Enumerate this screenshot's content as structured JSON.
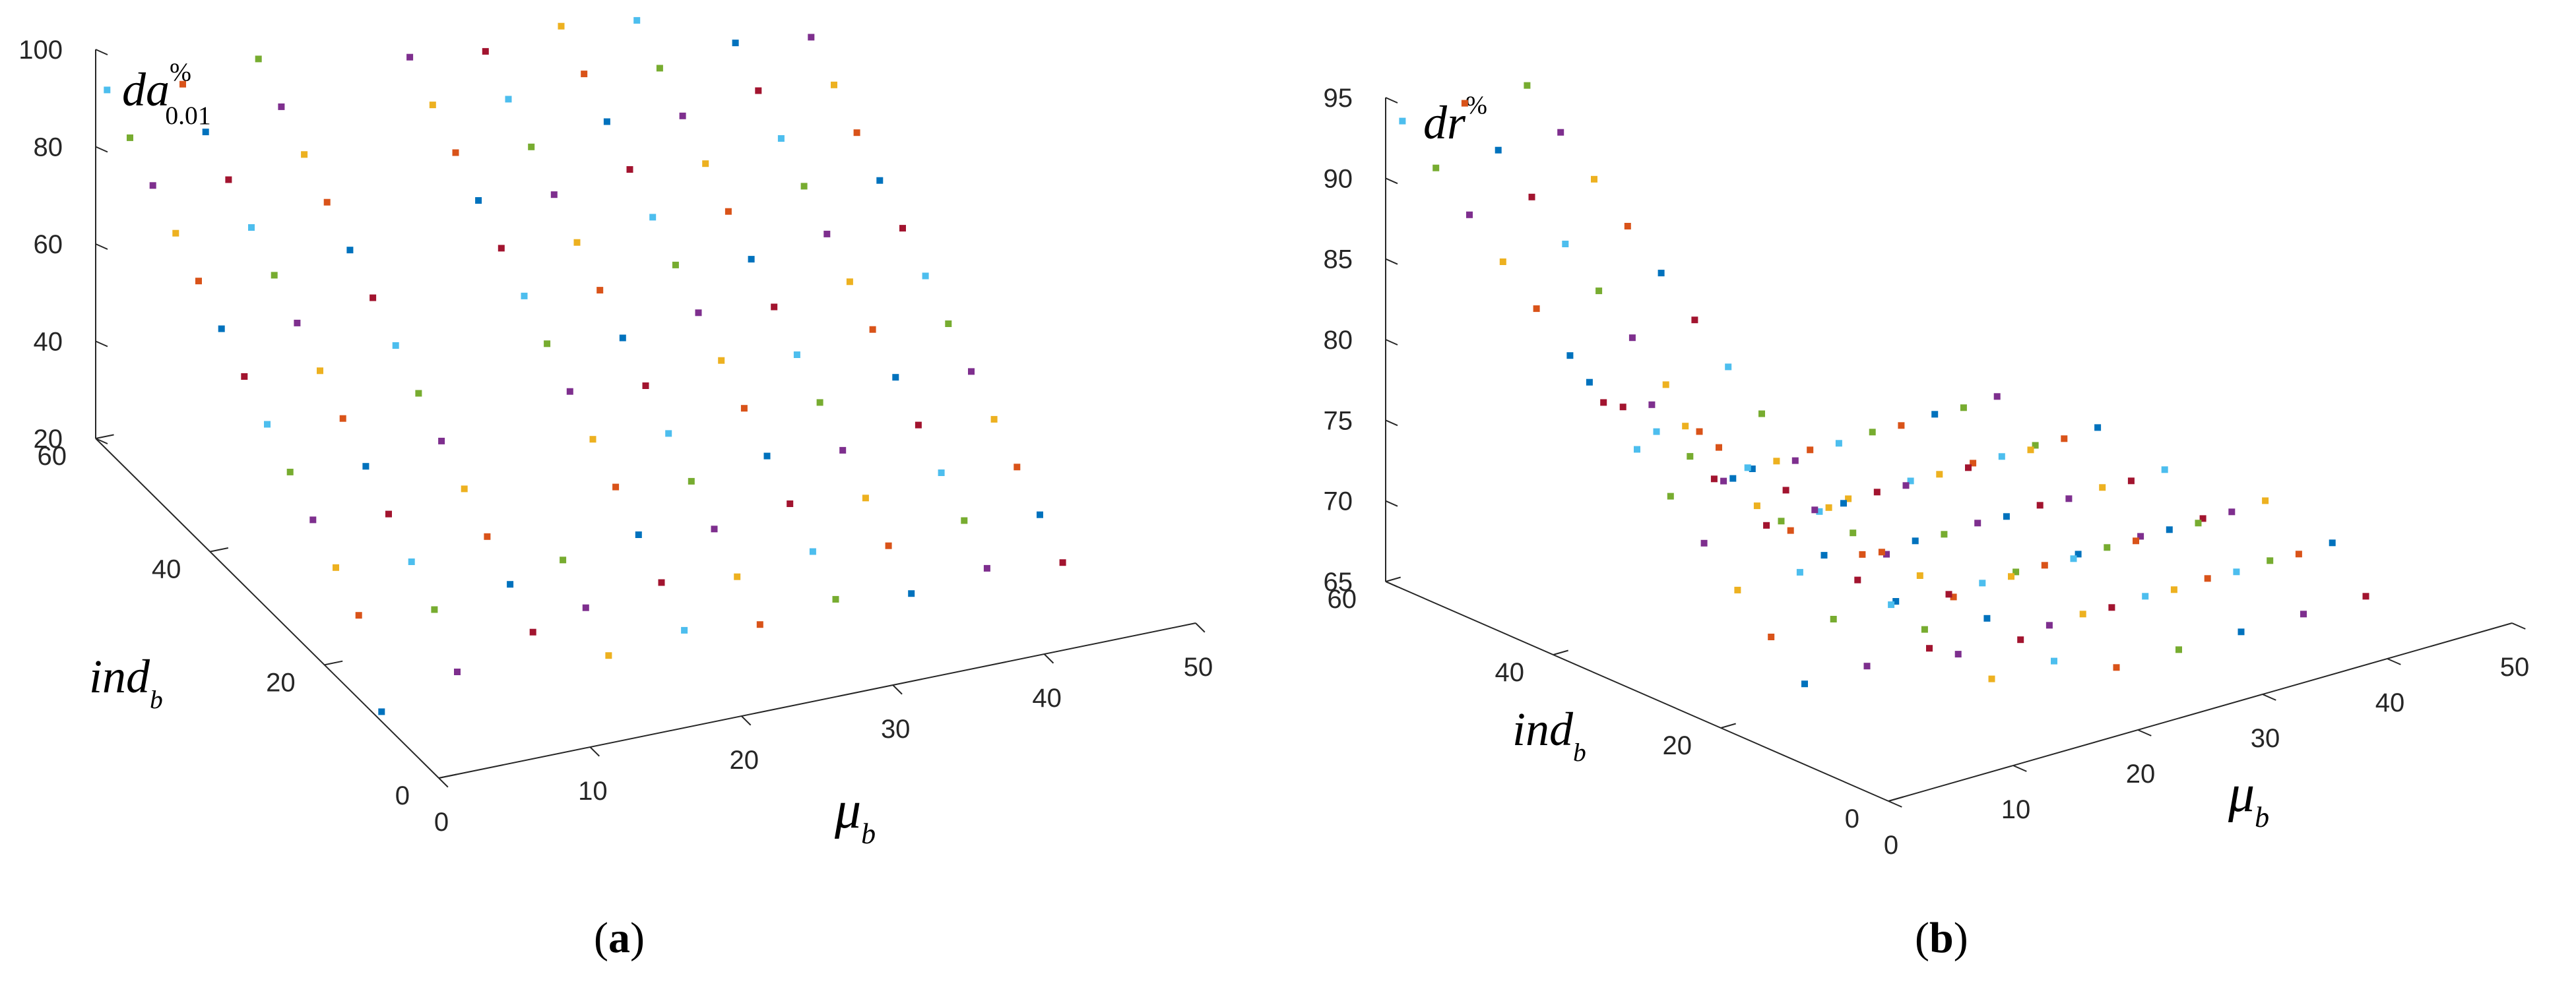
{
  "chart_data": [
    {
      "type": "scatter",
      "panel_label": "a",
      "z_label": "da",
      "z_label_sup": "%",
      "z_label_sub": "0.01",
      "x_label": "μ",
      "x_label_sub": "b",
      "y_label": "ind",
      "y_label_sub": "b",
      "x_ticks": [
        "0",
        "10",
        "20",
        "30",
        "40",
        "50"
      ],
      "y_ticks": [
        "0",
        "20",
        "40",
        "60"
      ],
      "z_ticks": [
        "20",
        "40",
        "60",
        "80",
        "100"
      ],
      "xlim": [
        0,
        50
      ],
      "ylim": [
        0,
        60
      ],
      "zlim": [
        20,
        100
      ],
      "series_colors": [
        "#0072bd",
        "#d95319",
        "#edb120",
        "#7e2f8e",
        "#77ac30",
        "#4dbeee",
        "#a2142f"
      ],
      "mu_values": [
        0,
        5,
        10,
        15,
        20,
        25,
        30,
        35,
        40,
        45
      ],
      "ind_values": [
        10,
        14,
        18,
        22,
        26,
        30,
        34,
        38,
        42,
        46,
        50,
        54,
        58
      ],
      "grid": false,
      "legend": "none"
    },
    {
      "type": "scatter",
      "panel_label": "b",
      "z_label": "dr",
      "z_label_sup": "%",
      "x_label": "μ",
      "x_label_sub": "b",
      "y_label": "ind",
      "y_label_sub": "b",
      "x_ticks": [
        "0",
        "10",
        "20",
        "30",
        "40",
        "50"
      ],
      "y_ticks": [
        "0",
        "20",
        "40",
        "60"
      ],
      "z_ticks": [
        "65",
        "70",
        "75",
        "80",
        "85",
        "90",
        "95"
      ],
      "xlim": [
        0,
        50
      ],
      "ylim": [
        0,
        60
      ],
      "zlim": [
        65,
        95
      ],
      "series_colors": [
        "#0072bd",
        "#d95319",
        "#edb120",
        "#7e2f8e",
        "#77ac30",
        "#4dbeee",
        "#a2142f"
      ],
      "mu_values": [
        0,
        5,
        10,
        15,
        20,
        25,
        30,
        35,
        40,
        45
      ],
      "ind_values": [
        10,
        14,
        18,
        22,
        26,
        30,
        34,
        38,
        42,
        46,
        50,
        54,
        58
      ],
      "grid": false,
      "legend": "none"
    }
  ]
}
